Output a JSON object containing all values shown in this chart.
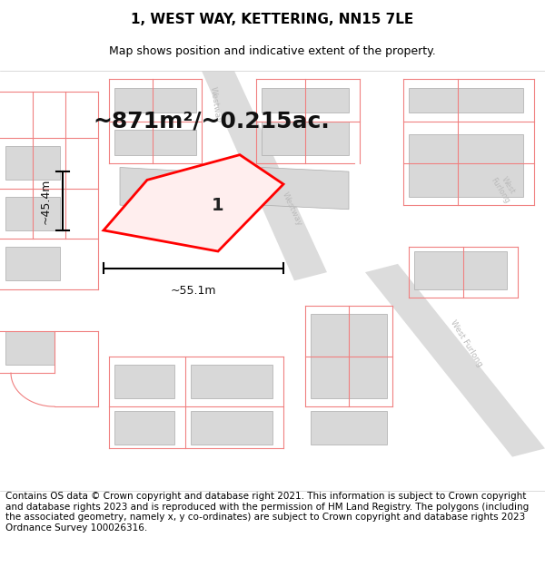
{
  "title": "1, WEST WAY, KETTERING, NN15 7LE",
  "subtitle": "Map shows position and indicative extent of the property.",
  "footer": "Contains OS data © Crown copyright and database right 2021. This information is subject to Crown copyright and database rights 2023 and is reproduced with the permission of HM Land Registry. The polygons (including the associated geometry, namely x, y co-ordinates) are subject to Crown copyright and database rights 2023 Ordnance Survey 100026316.",
  "area_text": "~871m²/~0.215ac.",
  "width_label": "~55.1m",
  "height_label": "~45.4m",
  "plot_number": "1",
  "title_fontsize": 11,
  "subtitle_fontsize": 9,
  "footer_fontsize": 7.5,
  "area_fontsize": 18,
  "building_color": "#d8d8d8",
  "boundary_color": "#f08080",
  "road_color": "#e8e8e8",
  "highlight_color": "#ff0000",
  "highlight_fill": "#ffeeee",
  "map_bg": "#f5f3f2"
}
